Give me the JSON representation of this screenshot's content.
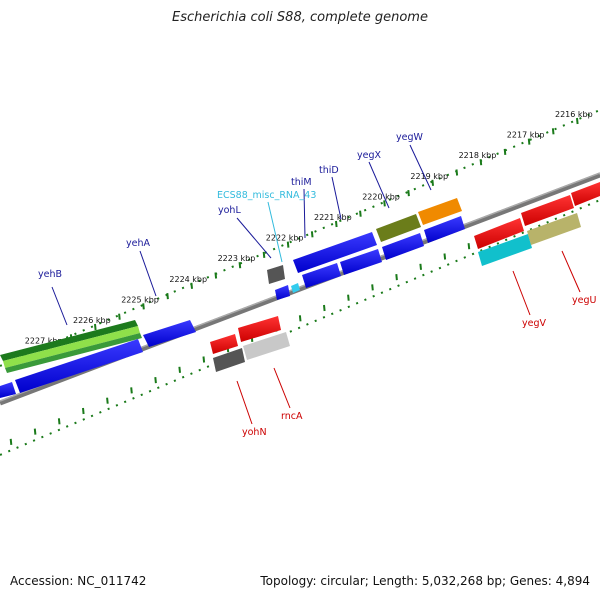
{
  "title": "Escherichia coli S88, complete genome",
  "footer": {
    "accession": "Accession: NC_011742",
    "topology": "Topology: circular; Length: 5,032,268 bp; Genes: 4,894"
  },
  "ruler": {
    "unit": "kbp",
    "ticks": [
      {
        "kbp": 2216,
        "label": "2216 kbp"
      },
      {
        "kbp": 2217,
        "label": "2217 kbp"
      },
      {
        "kbp": 2218,
        "label": "2218 kbp"
      },
      {
        "kbp": 2219,
        "label": "2219 kbp"
      },
      {
        "kbp": 2220,
        "label": "2220 kbp"
      },
      {
        "kbp": 2221,
        "label": "2221 kbp"
      },
      {
        "kbp": 2222,
        "label": "2222 kbp"
      },
      {
        "kbp": 2223,
        "label": "2223 kbp"
      },
      {
        "kbp": 2224,
        "label": "2224 kbp"
      },
      {
        "kbp": 2225,
        "label": "2225 kbp"
      },
      {
        "kbp": 2226,
        "label": "2226 kbp"
      },
      {
        "kbp": 2227,
        "label": "2227 kbp"
      }
    ]
  },
  "colors": {
    "forward_cds": "#0000ee",
    "forward_label": "#1a1a99",
    "reverse_cds": "#ee0000",
    "reverse_label": "#cc0000",
    "misc_rna": "#33ccee",
    "backbone": "#888888",
    "ruler": "#1a7a1a"
  },
  "labels": {
    "forward": [
      {
        "name": "yegW",
        "color": "#1a1a99"
      },
      {
        "name": "yegX",
        "color": "#1a1a99"
      },
      {
        "name": "thiD",
        "color": "#1a1a99"
      },
      {
        "name": "thiM",
        "color": "#1a1a99"
      },
      {
        "name": "ECS88_misc_RNA_43",
        "color": "#33bbdd"
      },
      {
        "name": "yohL",
        "color": "#1a1a99"
      },
      {
        "name": "yehA",
        "color": "#1a1a99"
      },
      {
        "name": "yehB",
        "color": "#1a1a99"
      }
    ],
    "reverse": [
      {
        "name": "yegU",
        "color": "#cc0000"
      },
      {
        "name": "yegV",
        "color": "#cc0000"
      },
      {
        "name": "rncA",
        "color": "#cc0000"
      },
      {
        "name": "yohN",
        "color": "#cc0000"
      }
    ]
  }
}
